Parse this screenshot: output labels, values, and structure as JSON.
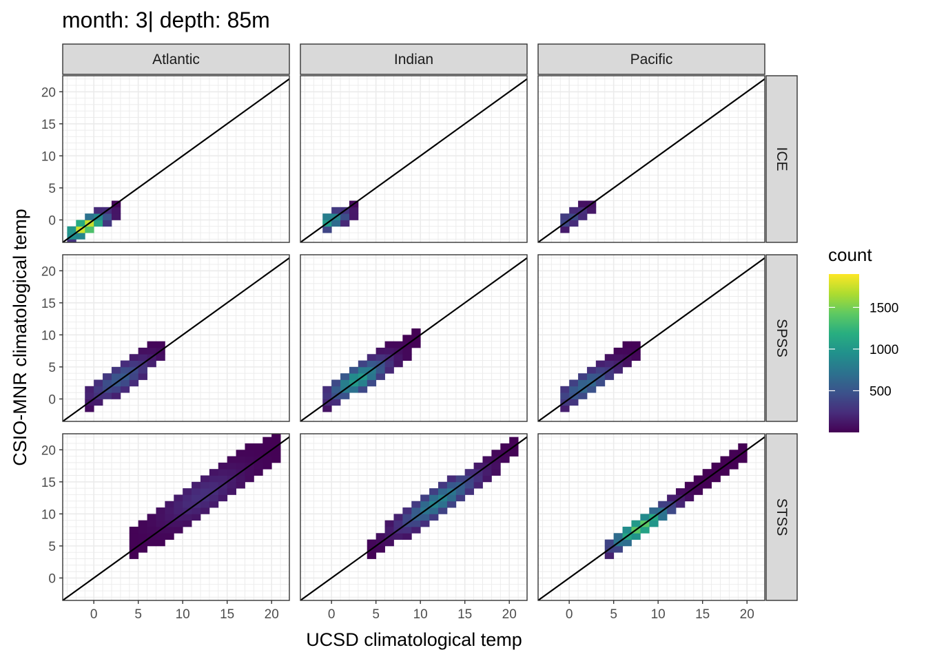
{
  "title": "month: 3| depth: 85m",
  "chart_data": {
    "type": "heatmap",
    "subtype": "faceted 2D histogram (bin2d) with 1:1 reference line",
    "title": "month: 3| depth: 85m",
    "xlabel": "UCSD climatological temp",
    "ylabel": "CSIO-MNR climatological temp",
    "xlim": [
      -3.5,
      22
    ],
    "ylim": [
      -3.5,
      22.5
    ],
    "x_ticks": [
      0,
      5,
      10,
      15,
      20
    ],
    "y_ticks": [
      0,
      5,
      10,
      15,
      20
    ],
    "bin_width": 1,
    "grid": true,
    "reference_line": {
      "slope": 1,
      "intercept": 0
    },
    "facet_columns": [
      "Atlantic",
      "Indian",
      "Pacific"
    ],
    "facet_rows": [
      "ICE",
      "SPSS",
      "STSS"
    ],
    "fill": {
      "name": "count",
      "min": 0,
      "max": 1900,
      "breaks": [
        500,
        1000,
        1500
      ],
      "palette": "viridis"
    },
    "legend_position": "right",
    "panels": [
      {
        "col": "Atlantic",
        "row": "ICE",
        "x_range": [
          -3,
          2
        ],
        "slope": 0.8,
        "intercept": -0.3,
        "width": 1.1,
        "peak": [
          -1,
          -1
        ],
        "peak_count": 1900,
        "spread": 1.8
      },
      {
        "col": "Indian",
        "row": "ICE",
        "x_range": [
          -1,
          2
        ],
        "slope": 0.6,
        "intercept": 0,
        "width": 1.1,
        "peak": [
          -0.5,
          0
        ],
        "peak_count": 1100,
        "spread": 1.6
      },
      {
        "col": "Pacific",
        "row": "ICE",
        "x_range": [
          -1,
          2
        ],
        "slope": 0.8,
        "intercept": 0.2,
        "width": 1.0,
        "peak": [
          0,
          0
        ],
        "peak_count": 450,
        "spread": 2
      },
      {
        "col": "Atlantic",
        "row": "SPSS",
        "x_range": [
          -1,
          7
        ],
        "slope": 0.95,
        "intercept": 0.4,
        "width": 1.8,
        "peak": [
          3,
          3
        ],
        "peak_count": 550,
        "spread": 3
      },
      {
        "col": "Indian",
        "row": "SPSS",
        "x_range": [
          -1,
          9
        ],
        "slope": 0.95,
        "intercept": 0.3,
        "width": 1.7,
        "peak": [
          3,
          3
        ],
        "peak_count": 1050,
        "spread": 2.8
      },
      {
        "col": "Pacific",
        "row": "SPSS",
        "x_range": [
          -1,
          7
        ],
        "slope": 0.95,
        "intercept": 0.4,
        "width": 1.7,
        "peak": [
          2,
          2
        ],
        "peak_count": 650,
        "spread": 3
      },
      {
        "col": "Atlantic",
        "row": "STSS",
        "x_range": [
          4,
          20
        ],
        "slope": 0.95,
        "intercept": 1.2,
        "width": 2.6,
        "peak": [
          12,
          13
        ],
        "peak_count": 260,
        "spread": 4
      },
      {
        "col": "Indian",
        "row": "STSS",
        "x_range": [
          4,
          20
        ],
        "slope": 0.98,
        "intercept": 0.2,
        "width": 1.6,
        "peak": [
          12,
          12
        ],
        "peak_count": 850,
        "spread": 4
      },
      {
        "col": "Pacific",
        "row": "STSS",
        "x_range": [
          4,
          19
        ],
        "slope": 0.98,
        "intercept": 0.1,
        "width": 1.3,
        "peak": [
          8,
          8
        ],
        "peak_count": 1450,
        "spread": 3
      }
    ]
  }
}
